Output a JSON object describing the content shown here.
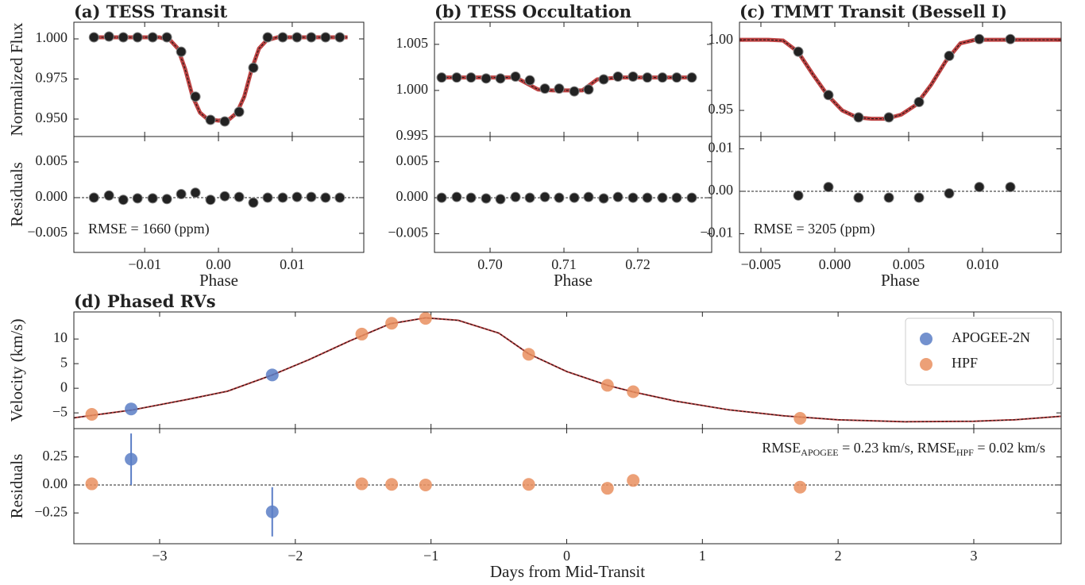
{
  "chart_data": [
    {
      "type": "scatter",
      "title": "(a) TESS Transit",
      "ylabel": "Normalized Flux",
      "xlim": [
        -0.0196,
        0.0197
      ],
      "ylim": [
        0.9391,
        1.0104
      ],
      "yticks": [
        {
          "value": 0.95,
          "label": "0.950"
        },
        0.975,
        {
          "value": 1,
          "label": "1.000"
        }
      ],
      "series": [
        {
          "marker": "line",
          "color": "#b22222",
          "x": [
            -0.0175,
            -0.008,
            -0.0065,
            -0.0055,
            -0.0045,
            -0.0035,
            -0.0025,
            -0.0015,
            0,
            0.0015,
            0.0025,
            0.0035,
            0.0045,
            0.0055,
            0.0065,
            0.008,
            0.0175
          ],
          "values": [
            1.001,
            1.001,
            0.999,
            0.994,
            0.981,
            0.964,
            0.954,
            0.95,
            0.949,
            0.95,
            0.954,
            0.964,
            0.981,
            0.994,
            0.999,
            1.001,
            1.001
          ]
        },
        {
          "marker": "dot",
          "color": "#222222",
          "x": [
            -0.01688,
            -0.01484,
            -0.0129,
            -0.01097,
            -0.00892,
            -0.00699,
            -0.00505,
            -0.00312,
            -0.00108,
            0.00086,
            0.0028,
            0.00473,
            0.00667,
            0.00871,
            0.01065,
            0.01258,
            0.01452,
            0.01645
          ],
          "values": [
            1.001,
            1.0015,
            1.001,
            1.001,
            1.001,
            1.001,
            0.992,
            0.964,
            0.9495,
            0.9485,
            0.9545,
            0.982,
            1.001,
            1.001,
            1.001,
            1.001,
            1.001,
            1.001
          ]
        }
      ]
    },
    {
      "type": "scatter",
      "ylabel": "Residuals",
      "xlabel": "Phase",
      "annotation": "RMSE = 1660 (ppm)",
      "hline": 0,
      "xlim": [
        -0.0196,
        0.0197
      ],
      "xticks": [
        {
          "value": -0.01,
          "label": "−0.01"
        },
        {
          "value": 0,
          "label": "0.00"
        },
        0.01
      ],
      "ylim": [
        -0.00767,
        0.00856
      ],
      "yticks": [
        {
          "value": -0.005,
          "label": "−0.005"
        },
        {
          "value": 0,
          "label": "0.000"
        },
        0.005
      ],
      "series": [
        {
          "marker": "dot",
          "color": "#222222",
          "x": [
            -0.01688,
            -0.01484,
            -0.0129,
            -0.01097,
            -0.00892,
            -0.00699,
            -0.00505,
            -0.00312,
            -0.00108,
            0.00086,
            0.0028,
            0.00473,
            0.00667,
            0.00871,
            0.01065,
            0.01258,
            0.01452,
            0.01645
          ],
          "values": [
            0,
            0.0003,
            -0.0003,
            -0.0001,
            -0.0001,
            -0.0002,
            0.0005,
            0.0007,
            -0.0003,
            0.0002,
            0.0001,
            -0.0007,
            0,
            0,
            0.0001,
            0.0001,
            0,
            0
          ]
        }
      ]
    },
    {
      "type": "scatter",
      "title": "(b) TESS Occultation",
      "xlim": [
        0.69247,
        0.73
      ],
      "ylim": [
        0.995,
        1.0074
      ],
      "yticks": [
        0.995,
        {
          "value": 1,
          "label": "1.000"
        },
        1.005
      ],
      "series": [
        {
          "marker": "line",
          "color": "#b22222",
          "x": [
            0.6935,
            0.7035,
            0.7065,
            0.7085,
            0.7125,
            0.7145,
            0.7175,
            0.7273
          ],
          "values": [
            1.0014,
            1.0014,
            1.0001,
            1.0,
            1.0,
            1.0012,
            1.0014,
            1.0014
          ]
        },
        {
          "marker": "dot",
          "color": "#222222",
          "x": [
            0.69344,
            0.69548,
            0.69742,
            0.69946,
            0.7014,
            0.70344,
            0.70538,
            0.70742,
            0.70935,
            0.7114,
            0.71333,
            0.71538,
            0.71731,
            0.71935,
            0.72129,
            0.72333,
            0.72527,
            0.72731
          ],
          "values": [
            1.0014,
            1.0014,
            1.0014,
            1.0013,
            1.0013,
            1.0015,
            1.0011,
            1.0002,
            1.0002,
            0.9999,
            1.0001,
            1.0012,
            1.0015,
            1.0015,
            1.0014,
            1.0014,
            1.0014,
            1.0014
          ]
        }
      ]
    },
    {
      "type": "scatter",
      "xlabel": "Phase",
      "hline": 0,
      "xlim": [
        0.69247,
        0.73
      ],
      "xticks": [
        {
          "value": 0.7,
          "label": "0.70"
        },
        0.71,
        0.72
      ],
      "ylim": [
        -0.0076,
        0.0085
      ],
      "yticks": [
        {
          "value": -0.005,
          "label": "−0.005"
        },
        {
          "value": 0,
          "label": "0.000"
        },
        0.005
      ],
      "series": [
        {
          "marker": "dot",
          "color": "#222222",
          "x": [
            0.69344,
            0.69548,
            0.69742,
            0.69946,
            0.7014,
            0.70344,
            0.70538,
            0.70742,
            0.70935,
            0.7114,
            0.71333,
            0.71538,
            0.71731,
            0.71935,
            0.72129,
            0.72333,
            0.72527,
            0.72731
          ],
          "values": [
            0,
            0.0001,
            0,
            -0.0001,
            -0.0002,
            0.0001,
            0,
            0.0001,
            0,
            0,
            0.0001,
            -0.0001,
            0.0001,
            0,
            0,
            0,
            0,
            0
          ]
        }
      ]
    },
    {
      "type": "scatter",
      "title": "(c) TMMT Transit (Bessell I)",
      "xlim": [
        -0.00645,
        0.01532
      ],
      "ylim": [
        0.9313,
        1.0131
      ],
      "yticks": [
        0.95,
        {
          "value": 1,
          "label": "1.00"
        }
      ],
      "series": [
        {
          "marker": "line",
          "color": "#b22222",
          "x": [
            -0.00645,
            -0.0045,
            -0.0035,
            -0.0025,
            -0.0015,
            -0.0005,
            0.0005,
            0.0015,
            0.0025,
            0.0035,
            0.0045,
            0.0055,
            0.0065,
            0.0075,
            0.0085,
            0.0095,
            0.01532
          ],
          "values": [
            1.0005,
            1.0005,
            1.0,
            0.992,
            0.976,
            0.961,
            0.95,
            0.945,
            0.944,
            0.944,
            0.947,
            0.954,
            0.968,
            0.985,
            0.998,
            1.0005,
            1.0005
          ]
        },
        {
          "marker": "dot",
          "color": "#222222",
          "x": [
            -0.00247,
            -0.00043,
            0.00161,
            0.00366,
            0.0057,
            0.00774,
            0.00978,
            0.01188
          ],
          "values": [
            0.992,
            0.961,
            0.945,
            0.945,
            0.956,
            0.989,
            1.001,
            1.001
          ]
        }
      ]
    },
    {
      "type": "scatter",
      "xlabel": "Phase",
      "annotation": "RMSE = 3205 (ppm)",
      "hline": 0,
      "xlim": [
        -0.00645,
        0.01532
      ],
      "xticks": [
        {
          "value": -0.005,
          "label": "−0.005"
        },
        {
          "value": 0,
          "label": "0.000"
        },
        0.005,
        {
          "value": 0.01,
          "label": "0.010"
        }
      ],
      "ylim": [
        -0.0144,
        0.0129
      ],
      "yticks": [
        {
          "value": -0.01,
          "label": "−0.01"
        },
        {
          "value": 0,
          "label": "0.00"
        },
        0.01
      ],
      "series": [
        {
          "marker": "dot",
          "color": "#222222",
          "x": [
            -0.00247,
            -0.00043,
            0.00161,
            0.00366,
            0.0057,
            0.00774,
            0.00978,
            0.01188
          ],
          "values": [
            -0.001,
            0.001,
            -0.0015,
            -0.0015,
            -0.0015,
            -0.0005,
            0.001,
            0.001
          ]
        }
      ]
    },
    {
      "type": "scatter",
      "title": "(d) Phased RVs",
      "ylabel": "Velocity (km/s)",
      "legend": "upper right",
      "xlim": [
        -3.632,
        3.644
      ],
      "ylim": [
        -8.2,
        15.5
      ],
      "yticks": [
        {
          "value": -5,
          "label": "−5"
        },
        0,
        5,
        10
      ],
      "series": [
        {
          "marker": "line",
          "color": "#b22222",
          "x": [
            -3.63,
            -3.2,
            -2.8,
            -2.5,
            -2.17,
            -1.9,
            -1.6,
            -1.3,
            -1.04,
            -0.8,
            -0.5,
            -0.28,
            0,
            0.3,
            0.5,
            0.8,
            1.2,
            1.6,
            2,
            2.5,
            3,
            3.3,
            3.64
          ],
          "values": [
            -6.0,
            -4.4,
            -2.3,
            -0.6,
            2.7,
            5.8,
            9.6,
            13.1,
            14.3,
            13.8,
            11.2,
            7.0,
            3.4,
            0.6,
            -0.8,
            -2.6,
            -4.4,
            -5.6,
            -6.4,
            -6.8,
            -6.7,
            -6.4,
            -5.7
          ]
        },
        {
          "name": "APOGEE-2N",
          "marker": "dot",
          "color": "#5b7ec6",
          "x": [
            -3.21,
            -2.17
          ],
          "values": [
            -4.2,
            2.7
          ]
        },
        {
          "name": "HPF",
          "marker": "dot",
          "color": "#e98f5f",
          "x": [
            -3.5,
            -1.51,
            -1.29,
            -1.04,
            -0.28,
            0.3,
            0.49,
            1.72
          ],
          "values": [
            -5.3,
            11.0,
            13.2,
            14.2,
            6.9,
            0.6,
            -0.7,
            -6.1
          ]
        }
      ]
    },
    {
      "type": "scatter",
      "ylabel": "Residuals",
      "xlabel": "Days from Mid-Transit",
      "hline": 0,
      "annotation": [
        "RMSE",
        "APOGEE",
        " = 0.23 km/s, RMSE",
        "HPF",
        " = 0.02 km/s"
      ],
      "xlim": [
        -3.632,
        3.644
      ],
      "xticks": [
        {
          "value": -3,
          "label": "−3"
        },
        {
          "value": -2,
          "label": "−2"
        },
        {
          "value": -1,
          "label": "−1"
        },
        0,
        1,
        2,
        3
      ],
      "ylim": [
        -0.525,
        0.503
      ],
      "yticks": [
        {
          "value": -0.25,
          "label": "−0.25"
        },
        {
          "value": 0,
          "label": "0.00"
        },
        0.25
      ],
      "series": [
        {
          "marker": "dot",
          "color": "#5b7ec6",
          "x": [
            -3.21,
            -2.17
          ],
          "values": [
            0.23,
            -0.24
          ],
          "errors": [
            0.23,
            0.22
          ]
        },
        {
          "marker": "dot",
          "color": "#e98f5f",
          "x": [
            -3.5,
            -1.51,
            -1.29,
            -1.04,
            -0.28,
            0.3,
            0.49,
            1.72
          ],
          "values": [
            0.01,
            0.01,
            0.005,
            0.0,
            0.005,
            -0.03,
            0.04,
            -0.02
          ]
        }
      ]
    }
  ]
}
